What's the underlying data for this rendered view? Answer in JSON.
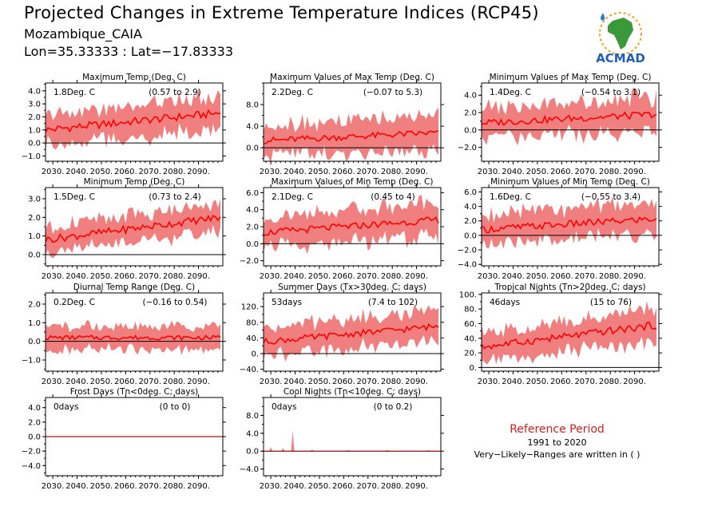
{
  "header": {
    "title": "Projected Changes in Extreme Temperature Indices (RCP45)",
    "location": "Mozambique_CAIA",
    "coords": "Lon=35.33333 : Lat=−17.83333"
  },
  "logo": {
    "text": "ACMAD",
    "colors": {
      "africa": "#3a9a3a",
      "drop": "#2a7fd4",
      "text": "#1f5fb8",
      "sun": "#f0a020"
    }
  },
  "reference": {
    "title": "Reference Period",
    "years": "1991 to 2020",
    "note": "Very−Likely−Ranges are written in ( )"
  },
  "colors": {
    "band": "#f08080",
    "median": "#ff0000",
    "zero_line": "#000000"
  },
  "chart_data": [
    {
      "type": "area",
      "title": "Maximum Temp (Deg. C)",
      "median_label": "1.8Deg. C",
      "range_label": "(0.57 to 2.9)",
      "yticks": [
        "4.0",
        "3.0",
        "2.0",
        "1.0",
        "0.0",
        "−1.0"
      ],
      "ylim": [
        -1.4,
        4.6
      ],
      "xlim": [
        2027,
        2100
      ],
      "xticks": [
        "2030.",
        "2040.",
        "2050.",
        "2060.",
        "2070.",
        "2080.",
        "2090."
      ],
      "median_start": 1.0,
      "median_end": 2.3,
      "spread_start": 1.1,
      "spread_end": 1.3,
      "noise": 0.3
    },
    {
      "type": "area",
      "title": "Maximum Values of Max Temp (Deg. C)",
      "median_label": "2.2Deg. C",
      "range_label": "(−0.07 to 5.3)",
      "yticks": [
        "8.0",
        "4.0",
        "0.0"
      ],
      "ylim": [
        -2.5,
        12
      ],
      "xlim": [
        2027,
        2100
      ],
      "xticks": [
        "2030.",
        "2040.",
        "2050.",
        "2060.",
        "2070.",
        "2080.",
        "2090."
      ],
      "median_start": 1.3,
      "median_end": 2.8,
      "spread_start": 2.8,
      "spread_end": 3.2,
      "noise": 0.6
    },
    {
      "type": "area",
      "title": "Minimum Values of Max Temp (Deg. C)",
      "median_label": "1.4Deg. C",
      "range_label": "(−0.54 to 3.1)",
      "yticks": [
        "4.0",
        "2.0",
        "0.0",
        "−2.0"
      ],
      "ylim": [
        -3.6,
        5.4
      ],
      "xlim": [
        2027,
        2100
      ],
      "xticks": [
        "2030.",
        "2040.",
        "2050.",
        "2060.",
        "2070.",
        "2080.",
        "2090."
      ],
      "median_start": 0.8,
      "median_end": 1.8,
      "spread_start": 1.7,
      "spread_end": 2.0,
      "noise": 0.4
    },
    {
      "type": "area",
      "title": "Minimum Temp (Deg. C)",
      "median_label": "1.5Deg. C",
      "range_label": "(0.73 to 2.4)",
      "yticks": [
        "3.0",
        "2.0",
        "1.0",
        "0.0"
      ],
      "ylim": [
        -0.6,
        3.6
      ],
      "xlim": [
        2027,
        2100
      ],
      "xticks": [
        "2030.",
        "2040.",
        "2050.",
        "2060.",
        "2070.",
        "2080.",
        "2090."
      ],
      "median_start": 0.8,
      "median_end": 2.0,
      "spread_start": 0.7,
      "spread_end": 0.8,
      "noise": 0.2
    },
    {
      "type": "area",
      "title": "Maximum Values of Min Temp (Deg. C)",
      "median_label": "2.1Deg. C",
      "range_label": "(0.45 to 4)",
      "yticks": [
        "6.0",
        "4.0",
        "2.0",
        "0.0",
        "−2.0"
      ],
      "ylim": [
        -2.6,
        6.6
      ],
      "xlim": [
        2027,
        2100
      ],
      "xticks": [
        "2030.",
        "2040.",
        "2050.",
        "2060.",
        "2070.",
        "2080.",
        "2090."
      ],
      "median_start": 1.3,
      "median_end": 2.8,
      "spread_start": 1.7,
      "spread_end": 2.0,
      "noise": 0.4
    },
    {
      "type": "area",
      "title": "Minimum Values of Min Temp (Deg. C)",
      "median_label": "1.6Deg. C",
      "range_label": "(−0.55 to 3.4)",
      "yticks": [
        "6.0",
        "4.0",
        "2.0",
        "0.0",
        "−2.0",
        "−4.0"
      ],
      "ylim": [
        -4.2,
        6.6
      ],
      "xlim": [
        2027,
        2100
      ],
      "xticks": [
        "2030.",
        "2040.",
        "2050.",
        "2060.",
        "2070.",
        "2080.",
        "2090."
      ],
      "median_start": 0.8,
      "median_end": 2.3,
      "spread_start": 2.0,
      "spread_end": 2.2,
      "noise": 0.5
    },
    {
      "type": "area",
      "title": "Diurnal Temp Range (Deg. C)",
      "median_label": "0.2Deg. C",
      "range_label": "(−0.16 to 0.54)",
      "yticks": [
        "2.0",
        "1.0",
        "0.0",
        "−1.0"
      ],
      "ylim": [
        -1.6,
        2.6
      ],
      "xlim": [
        2027,
        2100
      ],
      "xticks": [
        "2030.",
        "2040.",
        "2050.",
        "2060.",
        "2070.",
        "2080.",
        "2090."
      ],
      "median_start": 0.2,
      "median_end": 0.2,
      "spread_start": 0.6,
      "spread_end": 0.6,
      "noise": 0.12
    },
    {
      "type": "area",
      "title": "Summer Days (Tx>30deg. C; days)",
      "median_label": "53days",
      "range_label": "(7.4 to 102)",
      "yticks": [
        "120.",
        "80.",
        "40.",
        "0.",
        "−40."
      ],
      "ylim": [
        -45,
        155
      ],
      "xlim": [
        2027,
        2100
      ],
      "xticks": [
        "2030.",
        "2040.",
        "2050.",
        "2060.",
        "2070.",
        "2080.",
        "2090."
      ],
      "median_start": 30,
      "median_end": 70,
      "spread_start": 35,
      "spread_end": 40,
      "noise": 8
    },
    {
      "type": "area",
      "title": "Tropical Nights (Tn>20deg. C; days)",
      "median_label": "46days",
      "range_label": "(15 to 76)",
      "yticks": [
        "100.",
        "80.",
        "60.",
        "40.",
        "20.",
        "0."
      ],
      "ylim": [
        -5,
        102
      ],
      "xlim": [
        2027,
        2100
      ],
      "xticks": [
        "2030.",
        "2040.",
        "2050.",
        "2060.",
        "2070.",
        "2080.",
        "2090."
      ],
      "median_start": 28,
      "median_end": 58,
      "spread_start": 18,
      "spread_end": 22,
      "noise": 5
    },
    {
      "type": "area",
      "title": "Frost Days (Tn<0deg. C; days)",
      "median_label": "0days",
      "range_label": "(0 to 0)",
      "yticks": [
        "4.0",
        "2.0",
        "0.0",
        "−2.0",
        "−4.0"
      ],
      "ylim": [
        -5.4,
        5.4
      ],
      "xlim": [
        2027,
        2100
      ],
      "xticks": [
        "2030.",
        "2040.",
        "2050.",
        "2060.",
        "2070.",
        "2080.",
        "2090."
      ],
      "median_start": 0,
      "median_end": 0,
      "spread_start": 0,
      "spread_end": 0,
      "noise": 0
    },
    {
      "type": "area",
      "title": "Cool Nights (Tn<10deg. C; days)",
      "median_label": "0days",
      "range_label": "(0 to 0.2)",
      "yticks": [
        "8.0",
        "4.0",
        "0.0",
        "−4.0"
      ],
      "ylim": [
        -5.5,
        12
      ],
      "xlim": [
        2027,
        2100
      ],
      "xticks": [
        "2030.",
        "2040.",
        "2050.",
        "2060.",
        "2070.",
        "2080.",
        "2090."
      ],
      "median_start": 0,
      "median_end": 0,
      "spread_start": 0,
      "spread_end": 0,
      "noise": 0,
      "spikes": [
        [
          2030,
          0.9
        ],
        [
          2035,
          0.7
        ],
        [
          2039,
          4.6
        ],
        [
          2047,
          0.4
        ],
        [
          2062,
          0.3
        ],
        [
          2078,
          0.3
        ],
        [
          2095,
          0.3
        ]
      ]
    }
  ]
}
